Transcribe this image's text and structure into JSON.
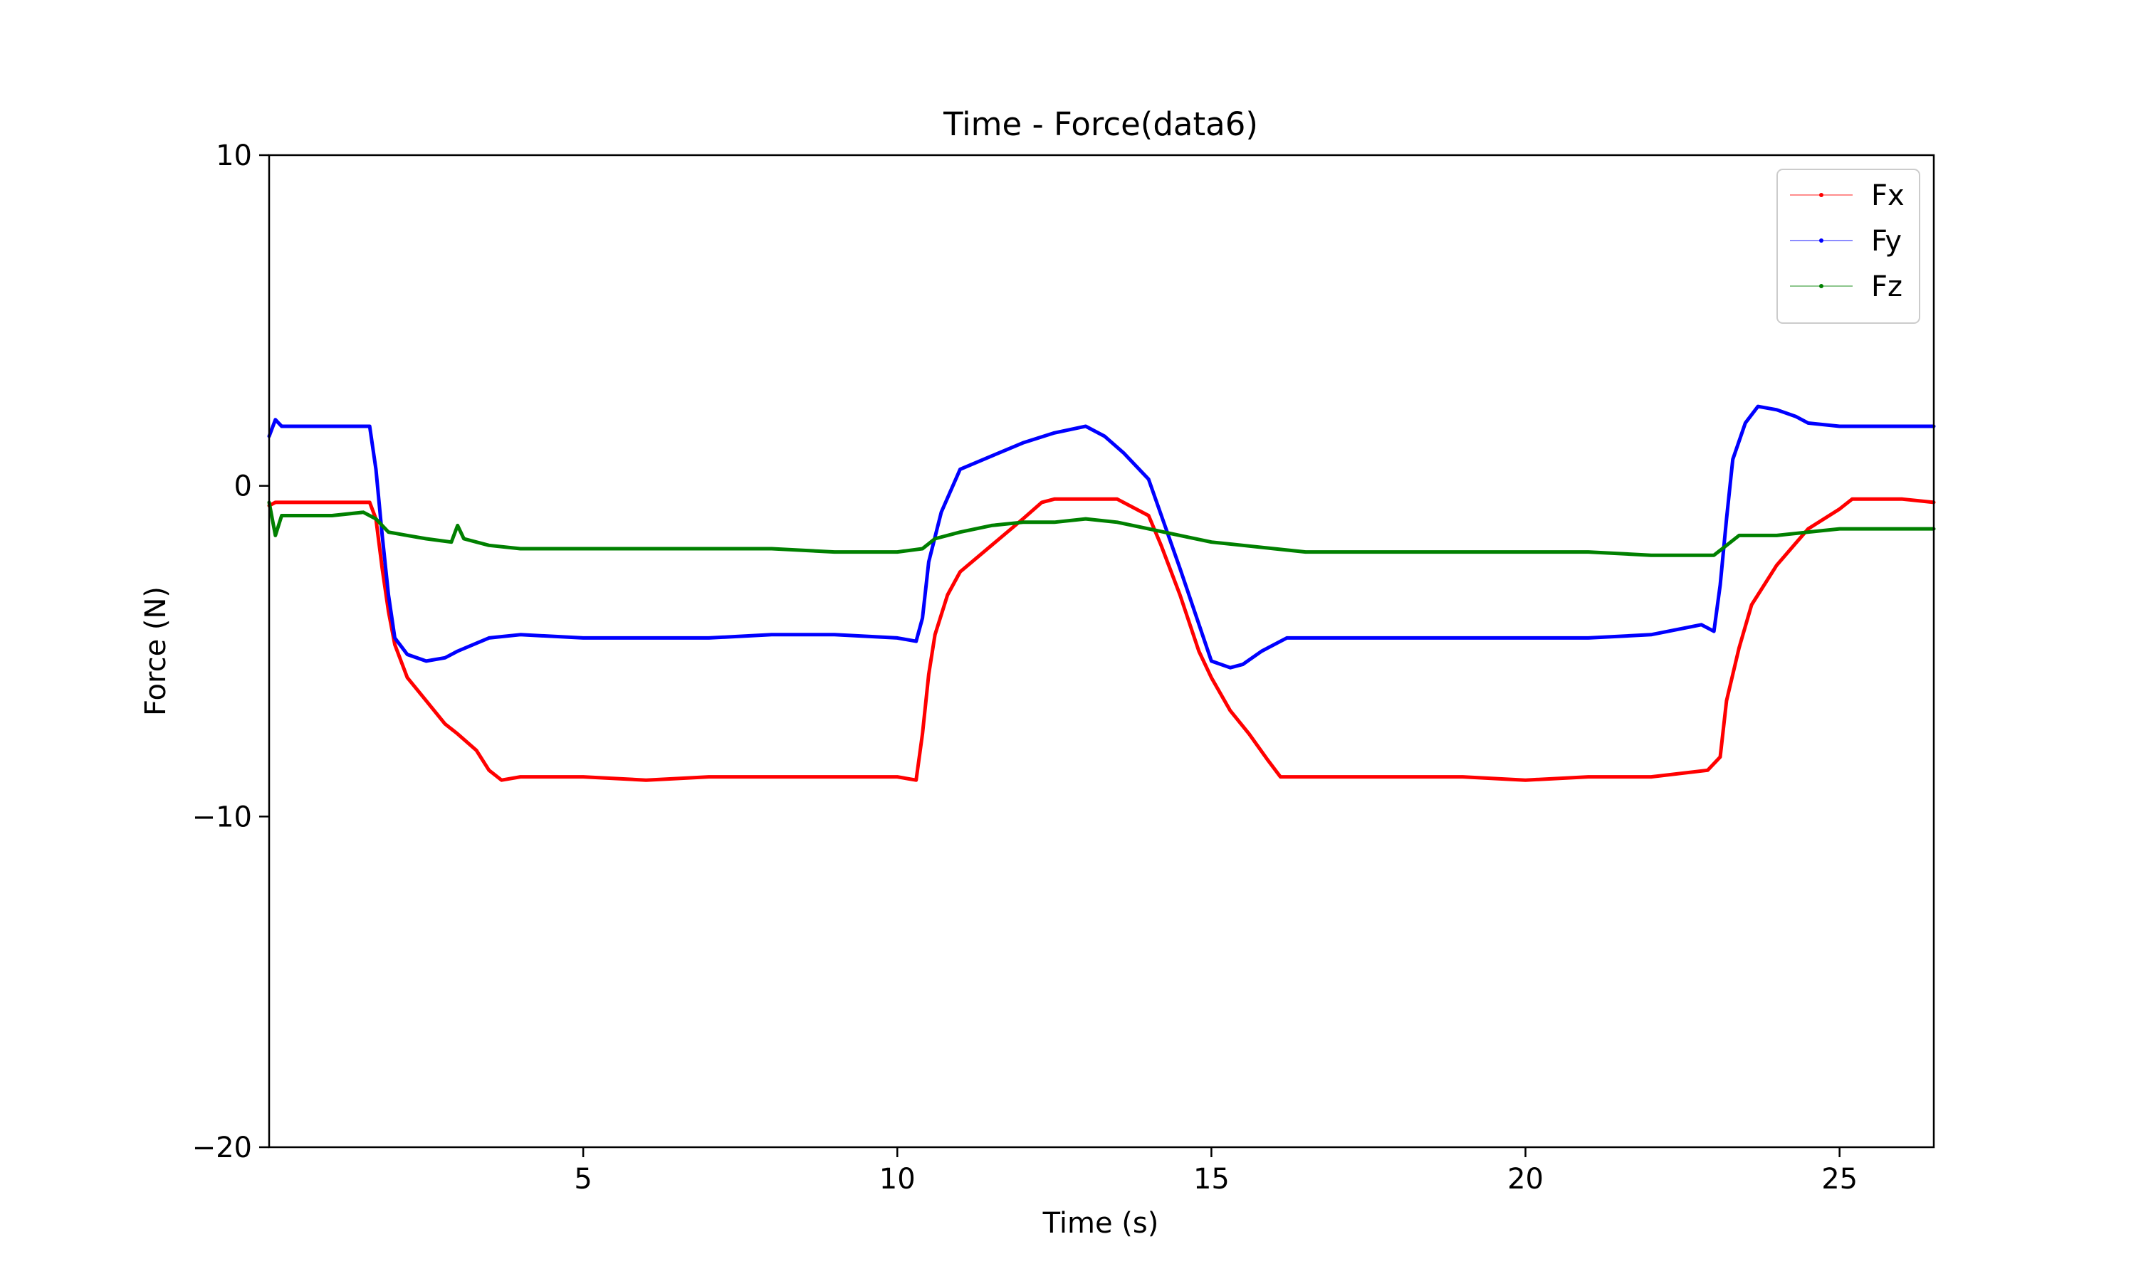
{
  "chart_data": {
    "type": "line",
    "title": "Time - Force(data6)",
    "xlabel": "Time (s)",
    "ylabel": "Force (N)",
    "xlim": [
      0,
      26.5
    ],
    "ylim": [
      -20,
      10
    ],
    "xticks": [
      5,
      10,
      15,
      20,
      25
    ],
    "yticks": [
      10,
      0,
      -10,
      -20
    ],
    "xtick_labels": [
      "5",
      "10",
      "15",
      "20",
      "25"
    ],
    "ytick_labels": [
      "10",
      "0",
      "−10",
      "−20"
    ],
    "grid": false,
    "legend_position": "top-right",
    "series": [
      {
        "name": "Fx",
        "color": "#ff0000",
        "x": [
          0,
          0.1,
          0.5,
          1.0,
          1.6,
          1.7,
          1.8,
          1.9,
          2.0,
          2.2,
          2.5,
          2.8,
          3.0,
          3.3,
          3.5,
          3.7,
          4.0,
          5.0,
          6.0,
          7.0,
          8.0,
          9.0,
          10.0,
          10.3,
          10.4,
          10.5,
          10.6,
          10.8,
          11.0,
          11.5,
          12.0,
          12.3,
          12.5,
          13.0,
          13.5,
          14.0,
          14.2,
          14.5,
          14.8,
          15.0,
          15.3,
          15.6,
          15.9,
          16.1,
          16.3,
          17.0,
          18.0,
          19.0,
          20.0,
          21.0,
          22.0,
          22.9,
          23.1,
          23.2,
          23.4,
          23.6,
          24.0,
          24.5,
          25.0,
          25.2,
          26.0,
          26.5
        ],
        "y": [
          -0.6,
          -0.5,
          -0.5,
          -0.5,
          -0.5,
          -1.0,
          -2.5,
          -3.8,
          -4.8,
          -5.8,
          -6.5,
          -7.2,
          -7.5,
          -8.0,
          -8.6,
          -8.9,
          -8.8,
          -8.8,
          -8.9,
          -8.8,
          -8.8,
          -8.8,
          -8.8,
          -8.9,
          -7.5,
          -5.7,
          -4.5,
          -3.3,
          -2.6,
          -1.8,
          -1.0,
          -0.5,
          -0.4,
          -0.4,
          -0.4,
          -0.9,
          -1.8,
          -3.3,
          -5.0,
          -5.8,
          -6.8,
          -7.5,
          -8.3,
          -8.8,
          -8.8,
          -8.8,
          -8.8,
          -8.8,
          -8.9,
          -8.8,
          -8.8,
          -8.6,
          -8.2,
          -6.5,
          -4.9,
          -3.6,
          -2.4,
          -1.3,
          -0.7,
          -0.4,
          -0.4,
          -0.5
        ]
      },
      {
        "name": "Fy",
        "color": "#0000ff",
        "x": [
          0,
          0.1,
          0.2,
          0.5,
          1.0,
          1.6,
          1.7,
          1.8,
          1.9,
          2.0,
          2.2,
          2.5,
          2.8,
          3.0,
          3.5,
          4.0,
          5.0,
          6.0,
          7.0,
          8.0,
          9.0,
          10.0,
          10.3,
          10.4,
          10.5,
          10.7,
          11.0,
          11.5,
          12.0,
          12.5,
          13.0,
          13.3,
          13.6,
          14.0,
          14.5,
          15.0,
          15.3,
          15.5,
          15.8,
          16.2,
          17.0,
          18.0,
          19.0,
          20.0,
          21.0,
          22.0,
          22.8,
          23.0,
          23.1,
          23.2,
          23.3,
          23.5,
          23.7,
          24.0,
          24.3,
          24.5,
          25.0,
          26.0,
          26.5
        ],
        "y": [
          1.5,
          2.0,
          1.8,
          1.8,
          1.8,
          1.8,
          0.5,
          -1.5,
          -3.3,
          -4.6,
          -5.1,
          -5.3,
          -5.2,
          -5.0,
          -4.6,
          -4.5,
          -4.6,
          -4.6,
          -4.6,
          -4.5,
          -4.5,
          -4.6,
          -4.7,
          -4.0,
          -2.3,
          -0.8,
          0.5,
          0.9,
          1.3,
          1.6,
          1.8,
          1.5,
          1.0,
          0.2,
          -2.5,
          -5.3,
          -5.5,
          -5.4,
          -5.0,
          -4.6,
          -4.6,
          -4.6,
          -4.6,
          -4.6,
          -4.6,
          -4.5,
          -4.2,
          -4.4,
          -3.0,
          -1.0,
          0.8,
          1.9,
          2.4,
          2.3,
          2.1,
          1.9,
          1.8,
          1.8,
          1.8
        ]
      },
      {
        "name": "Fz",
        "color": "#008000",
        "x": [
          0,
          0.1,
          0.2,
          0.5,
          1.0,
          1.5,
          1.7,
          1.9,
          2.2,
          2.5,
          2.9,
          3.0,
          3.1,
          3.5,
          4.0,
          5.0,
          6.0,
          7.0,
          8.0,
          9.0,
          10.0,
          10.4,
          10.6,
          11.0,
          11.5,
          12.0,
          12.5,
          13.0,
          13.5,
          14.0,
          14.5,
          15.0,
          15.5,
          16.0,
          16.5,
          17.0,
          18.0,
          19.0,
          20.0,
          21.0,
          22.0,
          22.5,
          23.0,
          23.2,
          23.4,
          24.0,
          24.5,
          25.0,
          25.5,
          26.5
        ],
        "y": [
          -0.5,
          -1.5,
          -0.9,
          -0.9,
          -0.9,
          -0.8,
          -1.0,
          -1.4,
          -1.5,
          -1.6,
          -1.7,
          -1.2,
          -1.6,
          -1.8,
          -1.9,
          -1.9,
          -1.9,
          -1.9,
          -1.9,
          -2.0,
          -2.0,
          -1.9,
          -1.6,
          -1.4,
          -1.2,
          -1.1,
          -1.1,
          -1.0,
          -1.1,
          -1.3,
          -1.5,
          -1.7,
          -1.8,
          -1.9,
          -2.0,
          -2.0,
          -2.0,
          -2.0,
          -2.0,
          -2.0,
          -2.1,
          -2.1,
          -2.1,
          -1.8,
          -1.5,
          -1.5,
          -1.4,
          -1.3,
          -1.3,
          -1.3
        ]
      }
    ]
  }
}
